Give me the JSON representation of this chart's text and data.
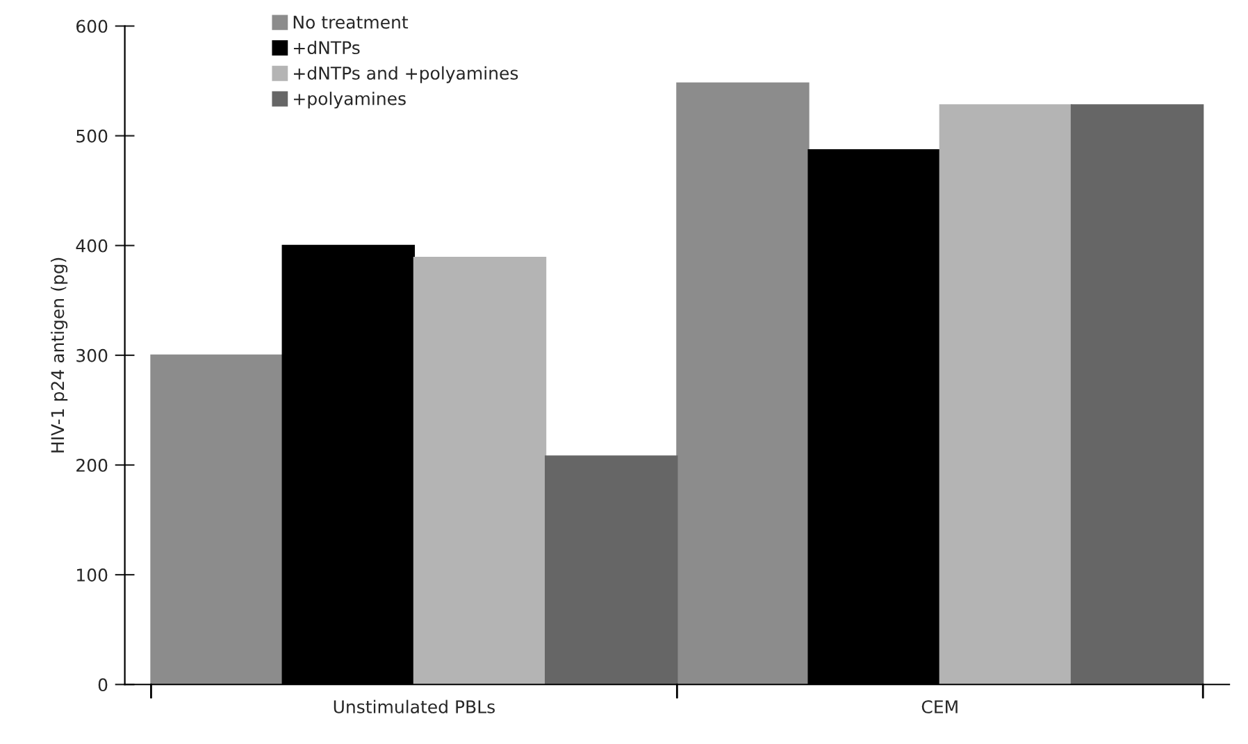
{
  "chart_data": {
    "type": "bar",
    "ylabel": "HIV-1 p24 antigen (pg)",
    "categories": [
      "Unstimulated PBLs",
      "CEM"
    ],
    "series": [
      {
        "name": "No treatment",
        "color": "#8c8c8c",
        "values": [
          300,
          548
        ]
      },
      {
        "name": "+dNTPs",
        "color": "#000000",
        "values": [
          400,
          487
        ]
      },
      {
        "name": "+dNTPs and +polyamines",
        "color": "#b4b4b4",
        "values": [
          389,
          528
        ]
      },
      {
        "name": "+polyamines",
        "color": "#666666",
        "values": [
          208,
          528
        ]
      }
    ],
    "ylim": [
      0,
      600
    ],
    "yticks": [
      0,
      100,
      200,
      300,
      400,
      500,
      600
    ],
    "grid": false,
    "legend": "top left"
  }
}
